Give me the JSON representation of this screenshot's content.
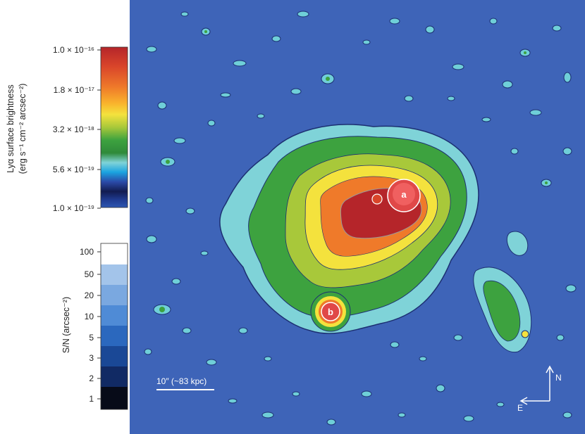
{
  "colorbar": {
    "label_line1": "Lyα surface brightness",
    "label_line2": "(erg s⁻¹ cm⁻² arcsec⁻²)",
    "ticks": [
      "1.0 × 10⁻¹⁶",
      "1.8 × 10⁻¹⁷",
      "3.2 × 10⁻¹⁸",
      "5.6 × 10⁻¹⁹",
      "1.0 × 10⁻¹⁹"
    ],
    "gradient_colors": [
      "#b5252a",
      "#d9452a",
      "#ef7a2a",
      "#f9b32c",
      "#f4e23d",
      "#a8c83a",
      "#3da23f",
      "#2f8a3a",
      "#7fd3d8",
      "#1aa3e0",
      "#2b4aa8",
      "#121c50",
      "#1f3a8f",
      "#2d57b2"
    ]
  },
  "sn_bar": {
    "label": "S/N (arcsec⁻²)",
    "ticks": [
      "100",
      "50",
      "20",
      "10",
      "5",
      "3",
      "2",
      "1"
    ],
    "colors": [
      "#ffffff",
      "#a3c4ea",
      "#7aa8e0",
      "#4f8bd6",
      "#2b68be",
      "#1a4896",
      "#112a64",
      "#070b18"
    ]
  },
  "map": {
    "background": "#3e64b8",
    "source_a": "a",
    "source_b": "b",
    "scale_bar_label": "10″ (~83 kpc)",
    "compass_north": "N",
    "compass_east": "E"
  }
}
